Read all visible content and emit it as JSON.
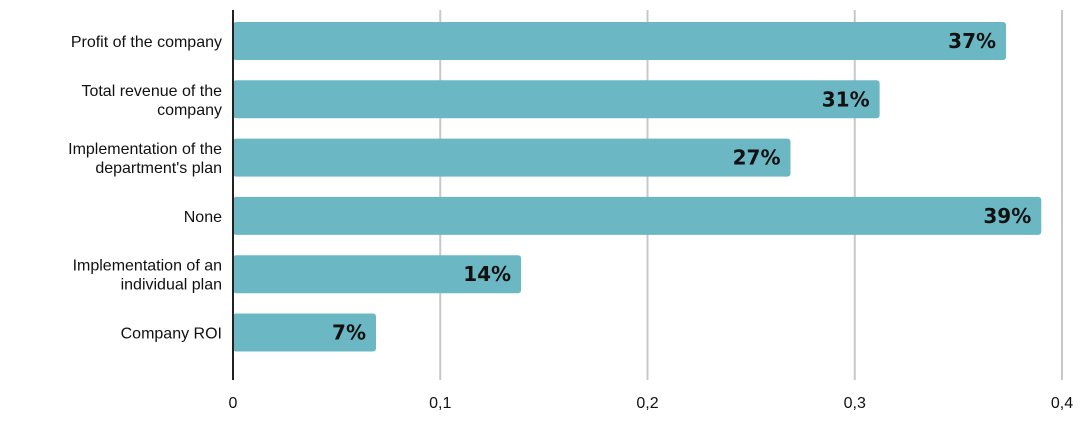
{
  "chart_data": {
    "type": "bar",
    "orientation": "horizontal",
    "categories": [
      [
        "Profit of the company"
      ],
      [
        "Total revenue of the",
        "company"
      ],
      [
        "Implementation of the",
        "department's plan"
      ],
      [
        "None"
      ],
      [
        "Implementation of an",
        "individual plan"
      ],
      [
        "Company ROI"
      ]
    ],
    "values": [
      0.373,
      0.312,
      0.269,
      0.39,
      0.139,
      0.069
    ],
    "data_labels": [
      "37%",
      "31%",
      "27%",
      "39%",
      "14%",
      "7%"
    ],
    "xlim": [
      0,
      0.4
    ],
    "xticks": [
      0,
      0.1,
      0.2,
      0.3,
      0.4
    ],
    "xtick_labels": [
      "0",
      "0,1",
      "0,2",
      "0,3",
      "0,4"
    ],
    "title": "",
    "xlabel": "",
    "ylabel": "",
    "grid": true,
    "legend": "none",
    "colors": {
      "bar": "#6bb8c4",
      "grid": "#c8c8c8",
      "axis": "#222222",
      "text": "#111111"
    }
  }
}
